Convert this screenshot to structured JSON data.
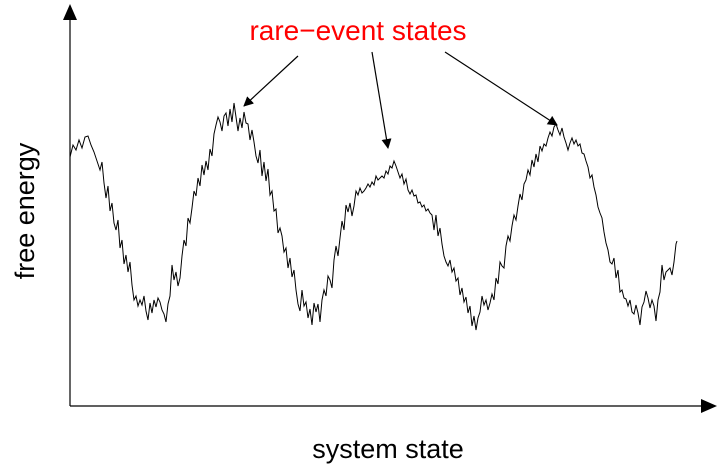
{
  "annotation": {
    "text": "rare−event states",
    "color": "#ff0000"
  },
  "axes": {
    "xlabel": "system state",
    "ylabel": "free energy",
    "color": "#000000"
  },
  "curve": {
    "color": "#000000",
    "wells": 3,
    "barriers_marked": 3
  }
}
